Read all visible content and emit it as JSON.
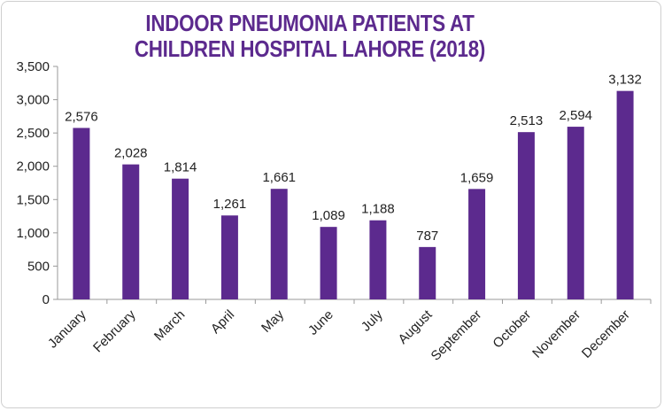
{
  "chart_data": {
    "type": "bar",
    "title_lines": [
      "INDOOR PNEUMONIA PATIENTS AT",
      "CHILDREN HOSPITAL LAHORE (2018)"
    ],
    "categories": [
      "January",
      "February",
      "March",
      "April",
      "May",
      "June",
      "July",
      "August",
      "September",
      "October",
      "November",
      "December"
    ],
    "values": [
      2576,
      2028,
      1814,
      1261,
      1661,
      1089,
      1188,
      787,
      1659,
      2513,
      2594,
      3132
    ],
    "value_labels": [
      "2,576",
      "2,028",
      "1,814",
      "1,261",
      "1,661",
      "1,089",
      "1,188",
      "787",
      "1,659",
      "2,513",
      "2,594",
      "3,132"
    ],
    "y_ticks": [
      0,
      500,
      1000,
      1500,
      2000,
      2500,
      3000,
      3500
    ],
    "y_tick_labels": [
      "0",
      "500",
      "1,000",
      "1,500",
      "2,000",
      "2,500",
      "3,000",
      "3,500"
    ],
    "ylim": [
      0,
      3500
    ],
    "xlabel": "",
    "ylabel": "",
    "grid": false,
    "legend": "none",
    "bar_color": "#5c2a8e",
    "title_color": "#5c2a8e"
  }
}
